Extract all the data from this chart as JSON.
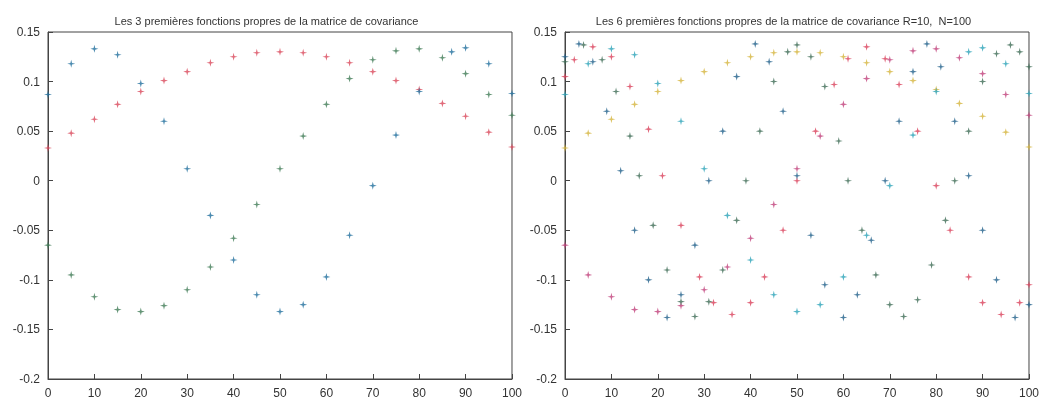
{
  "chart_data": [
    {
      "type": "scatter",
      "title": "Les 3 premières fonctions propres de la matrice de covariance",
      "xlim": [
        0,
        100
      ],
      "xticks": [
        0,
        10,
        20,
        30,
        40,
        50,
        60,
        70,
        80,
        90,
        100
      ],
      "ylim": [
        -0.2,
        0.15
      ],
      "yticks": [
        -0.2,
        -0.15,
        -0.1,
        -0.05,
        0,
        0.05,
        0.1,
        0.15
      ],
      "grid": false,
      "marker": "star",
      "series": [
        {
          "color": "#d9475a",
          "x": [
            0,
            5,
            10,
            15,
            20,
            25,
            30,
            35,
            40,
            45,
            50,
            55,
            60,
            65,
            70,
            75,
            80,
            85,
            90,
            95,
            100
          ],
          "values": [
            0.033,
            0.048,
            0.062,
            0.077,
            0.09,
            0.101,
            0.11,
            0.119,
            0.125,
            0.129,
            0.13,
            0.129,
            0.125,
            0.119,
            0.11,
            0.101,
            0.092,
            0.078,
            0.065,
            0.049,
            0.034
          ]
        },
        {
          "color": "#1f6e9c",
          "x": [
            0,
            5,
            10,
            15,
            20,
            25,
            30,
            35,
            40,
            45,
            50,
            55,
            60,
            65,
            70,
            75,
            80,
            87,
            90,
            95,
            100
          ],
          "values": [
            0.087,
            0.118,
            0.133,
            0.127,
            0.098,
            0.06,
            0.012,
            -0.035,
            -0.08,
            -0.115,
            -0.132,
            -0.125,
            -0.097,
            -0.055,
            -0.005,
            0.046,
            0.09,
            0.13,
            0.134,
            0.118,
            0.088
          ]
        },
        {
          "color": "#3f7a55",
          "x": [
            0,
            5,
            10,
            15,
            20,
            25,
            30,
            35,
            40,
            45,
            50,
            55,
            60,
            65,
            70,
            75,
            80,
            85,
            90,
            95,
            100
          ],
          "values": [
            -0.065,
            -0.095,
            -0.117,
            -0.13,
            -0.132,
            -0.126,
            -0.11,
            -0.087,
            -0.058,
            -0.024,
            0.012,
            0.045,
            0.077,
            0.103,
            0.122,
            0.131,
            0.133,
            0.124,
            0.108,
            0.087,
            0.066
          ]
        }
      ]
    },
    {
      "type": "scatter",
      "title": "Les 6 premières fonctions propres de la matrice de covariance R=10,  N=100",
      "xlim": [
        0,
        100
      ],
      "xticks": [
        0,
        10,
        20,
        30,
        40,
        50,
        60,
        70,
        80,
        90,
        100
      ],
      "ylim": [
        -0.2,
        0.15
      ],
      "yticks": [
        -0.2,
        -0.15,
        -0.1,
        -0.05,
        0,
        0.05,
        0.1,
        0.15
      ],
      "grid": false,
      "marker": "star",
      "series": [
        {
          "color": "#d4b43c",
          "x": [
            0,
            5,
            10,
            15,
            20,
            25,
            30,
            35,
            40,
            45,
            50,
            55,
            60,
            65,
            70,
            75,
            80,
            85,
            90,
            95,
            100
          ],
          "values": [
            0.033,
            0.048,
            0.062,
            0.077,
            0.09,
            0.101,
            0.11,
            0.119,
            0.125,
            0.129,
            0.13,
            0.129,
            0.125,
            0.119,
            0.11,
            0.101,
            0.092,
            0.078,
            0.065,
            0.049,
            0.034
          ]
        },
        {
          "color": "#2aa3b8",
          "x": [
            0,
            5,
            10,
            15,
            20,
            25,
            30,
            35,
            40,
            45,
            50,
            55,
            60,
            65,
            70,
            75,
            80,
            87,
            90,
            95,
            100
          ],
          "values": [
            0.087,
            0.118,
            0.133,
            0.127,
            0.098,
            0.06,
            0.012,
            -0.035,
            -0.08,
            -0.115,
            -0.132,
            -0.125,
            -0.097,
            -0.055,
            -0.005,
            0.046,
            0.09,
            0.13,
            0.134,
            0.118,
            0.088
          ]
        },
        {
          "color": "#c0407a",
          "x": [
            0,
            5,
            10,
            15,
            20,
            25,
            30,
            35,
            40,
            45,
            50,
            55,
            60,
            65,
            70,
            75,
            80,
            85,
            90,
            95,
            100
          ],
          "values": [
            -0.065,
            -0.095,
            -0.117,
            -0.13,
            -0.132,
            -0.126,
            -0.11,
            -0.087,
            -0.058,
            -0.024,
            0.012,
            0.045,
            0.077,
            0.103,
            0.122,
            0.131,
            0.133,
            0.124,
            0.108,
            0.087,
            0.066
          ]
        },
        {
          "color": "#d9405a",
          "x": [
            0,
            2,
            6,
            10,
            14,
            18,
            21,
            25,
            29,
            32,
            36,
            40,
            43,
            47,
            50,
            54,
            58,
            61,
            65,
            69,
            72,
            76,
            80,
            83,
            87,
            90,
            94,
            98,
            100
          ],
          "values": [
            0.105,
            0.122,
            0.135,
            0.125,
            0.095,
            0.052,
            0.005,
            -0.045,
            -0.097,
            -0.123,
            -0.135,
            -0.123,
            -0.097,
            -0.05,
            0,
            0.05,
            0.097,
            0.123,
            0.135,
            0.123,
            0.097,
            0.05,
            -0.005,
            -0.05,
            -0.097,
            -0.123,
            -0.135,
            -0.123,
            -0.105
          ]
        },
        {
          "color": "#3d6b55",
          "x": [
            0,
            4,
            8,
            11,
            14,
            16,
            19,
            22,
            25,
            28,
            31,
            34,
            37,
            39,
            42,
            45,
            48,
            50,
            53,
            56,
            59,
            61,
            64,
            67,
            70,
            73,
            76,
            79,
            82,
            84,
            87,
            90,
            93,
            96,
            98,
            100
          ],
          "values": [
            0.12,
            0.137,
            0.122,
            0.09,
            0.045,
            0.005,
            -0.045,
            -0.09,
            -0.122,
            -0.137,
            -0.122,
            -0.09,
            -0.04,
            0,
            0.05,
            0.1,
            0.13,
            0.137,
            0.125,
            0.095,
            0.04,
            0,
            -0.05,
            -0.095,
            -0.125,
            -0.137,
            -0.12,
            -0.085,
            -0.04,
            0,
            0.05,
            0.1,
            0.128,
            0.137,
            0.13,
            0.115
          ]
        },
        {
          "color": "#1f5f8a",
          "x": [
            0,
            3,
            6,
            9,
            12,
            15,
            18,
            22,
            25,
            28,
            31,
            34,
            37,
            41,
            44,
            47,
            50,
            53,
            56,
            60,
            63,
            66,
            69,
            72,
            75,
            78,
            81,
            84,
            87,
            90,
            93,
            97,
            100
          ],
          "values": [
            0.125,
            0.138,
            0.12,
            0.07,
            0.01,
            -0.05,
            -0.1,
            -0.138,
            -0.115,
            -0.065,
            0,
            0.05,
            0.105,
            0.138,
            0.12,
            0.07,
            0.005,
            -0.055,
            -0.105,
            -0.138,
            -0.115,
            -0.06,
            0,
            0.06,
            0.11,
            0.138,
            0.115,
            0.06,
            0.005,
            -0.05,
            -0.1,
            -0.138,
            -0.125
          ]
        }
      ]
    }
  ]
}
